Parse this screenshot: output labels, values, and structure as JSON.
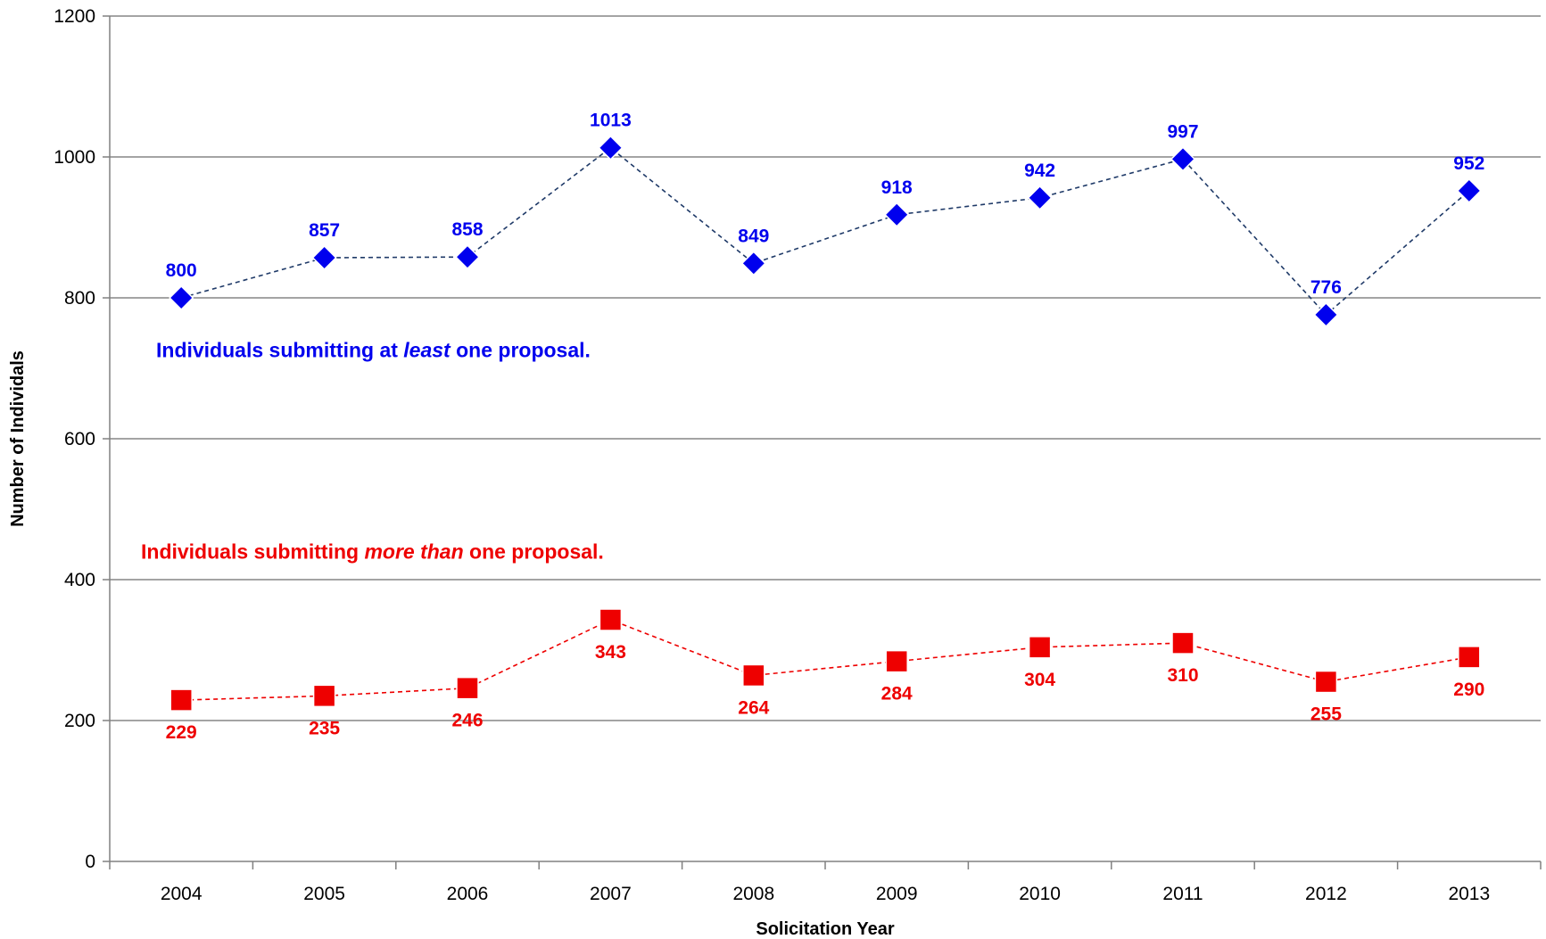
{
  "chart_data": {
    "type": "line",
    "categories": [
      "2004",
      "2005",
      "2006",
      "2007",
      "2008",
      "2009",
      "2010",
      "2011",
      "2012",
      "2013"
    ],
    "series": [
      {
        "values": [
          800,
          857,
          858,
          1013,
          849,
          918,
          942,
          997,
          776,
          952
        ],
        "color": "#0000ee",
        "line_color": "#1f3a68",
        "marker": "diamond",
        "label_position": "above"
      },
      {
        "values": [
          229,
          235,
          246,
          343,
          264,
          284,
          304,
          310,
          255,
          290
        ],
        "color": "#ee0000",
        "line_color": "#ee0000",
        "marker": "square",
        "label_position": "below"
      }
    ],
    "xlabel": "Solicitation Year",
    "ylabel": "Number of Individals",
    "ylim": [
      0,
      1200
    ],
    "yticks": [
      0,
      200,
      400,
      600,
      800,
      1000,
      1200
    ],
    "grid": true,
    "legend": "none",
    "annotations": [
      {
        "series_index": 0,
        "parts": [
          {
            "text": "Individuals submitting at ",
            "italic": false
          },
          {
            "text": "least",
            "italic": true
          },
          {
            "text": " one proposal.",
            "italic": false
          }
        ]
      },
      {
        "series_index": 1,
        "parts": [
          {
            "text": "Individuals submitting ",
            "italic": false
          },
          {
            "text": "more than",
            "italic": true
          },
          {
            "text": " one proposal.",
            "italic": false
          }
        ]
      }
    ]
  }
}
